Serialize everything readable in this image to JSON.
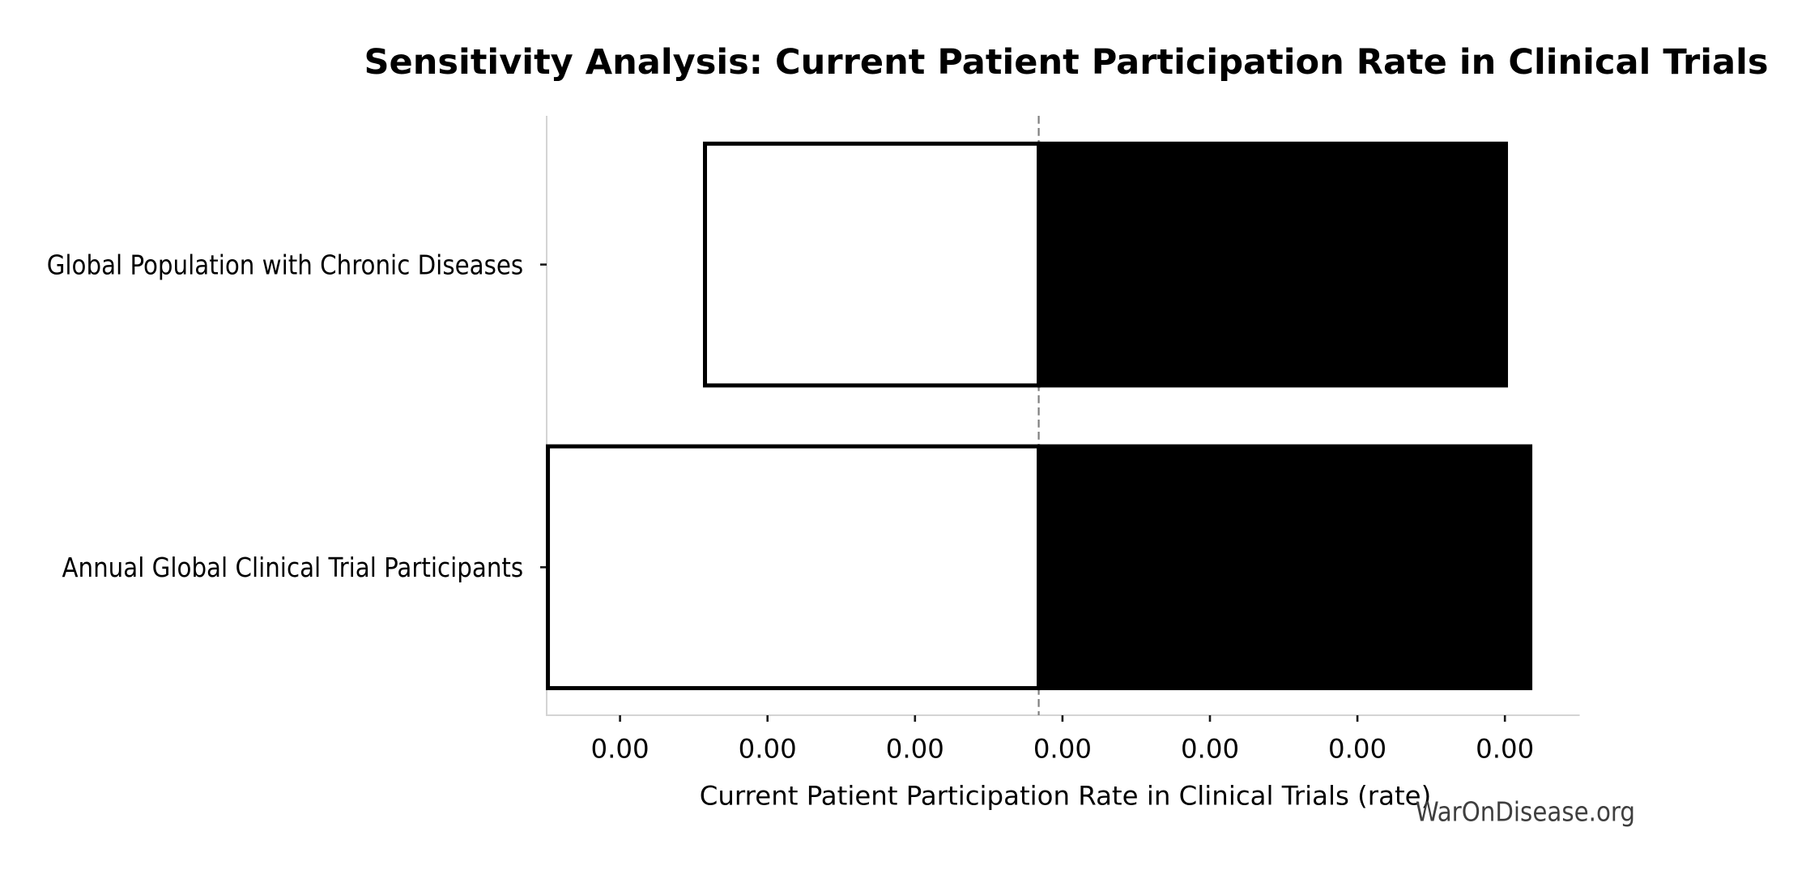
{
  "chart_data": {
    "type": "bar",
    "orientation": "horizontal",
    "subtype": "tornado-sensitivity",
    "title": "Sensitivity Analysis: Current Patient Participation Rate in Clinical Trials",
    "xlabel": "Current Patient Participation Rate in Clinical Trials (rate)",
    "watermark": "WarOnDisease.org",
    "categories": [
      "Global Population with Chronic Diseases",
      "Annual Global Clinical Trial Participants"
    ],
    "x_tick_labels": [
      "0.00",
      "0.00",
      "0.00",
      "0.00",
      "0.00",
      "0.00",
      "0.00"
    ],
    "x_tick_positions_units": [
      0,
      1,
      2,
      3,
      4,
      5,
      6
    ],
    "x_range_units": [
      -0.498,
      6.507
    ],
    "baseline_x_units": 2.839,
    "bars": [
      {
        "category": "Global Population with Chronic Diseases",
        "low": 0.576,
        "high": 6.021
      },
      {
        "category": "Annual Global Clinical Trial Participants",
        "low": -0.489,
        "high": 6.186
      }
    ],
    "grid": false,
    "legend": false,
    "colors": {
      "low_side_fill": "#ffffff",
      "high_side_fill": "#000000",
      "bar_edge": "#000000",
      "baseline_dash": "#7f7f7f",
      "spine": "#d4d4d4",
      "tick_mark": "#1a1a1a",
      "text": "#000000",
      "watermark": "#3f3f3f"
    }
  }
}
